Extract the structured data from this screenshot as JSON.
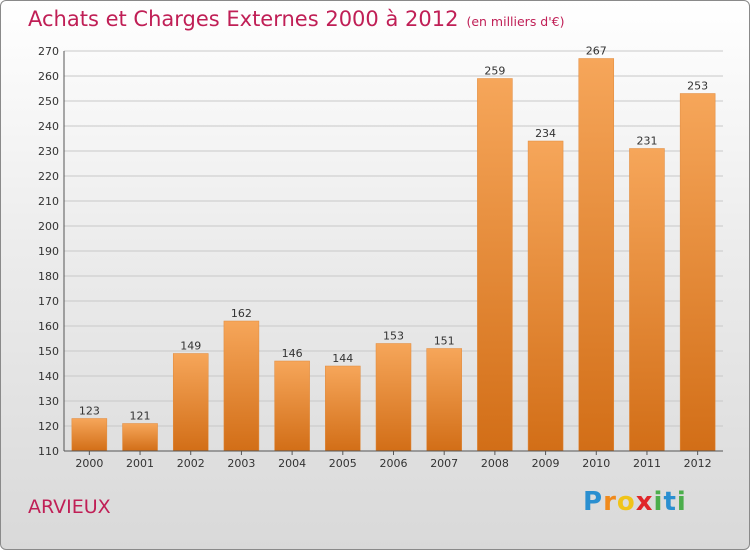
{
  "title": "Achats et Charges Externes 2000 à 2012",
  "unit": "(en milliers d'€)",
  "place": "ARVIEUX",
  "logo": {
    "letters": [
      "P",
      "r",
      "o",
      "x",
      "i",
      "t",
      "i"
    ],
    "colors": [
      "#2a8fd0",
      "#f08a1c",
      "#f0c419",
      "#e0262a",
      "#4cae4c",
      "#2a8fd0",
      "#4cae4c"
    ]
  },
  "colors": {
    "bar_light": "#f6a65a",
    "bar_dark": "#d26e17",
    "title": "#c01f56"
  },
  "chart_data": {
    "type": "bar",
    "title": "Achats et Charges Externes 2000 à 2012",
    "subtitle": "(en milliers d'€)",
    "categories": [
      "2000",
      "2001",
      "2002",
      "2003",
      "2004",
      "2005",
      "2006",
      "2007",
      "2008",
      "2009",
      "2010",
      "2011",
      "2012"
    ],
    "values": [
      123,
      121,
      149,
      162,
      146,
      144,
      153,
      151,
      259,
      234,
      267,
      231,
      253
    ],
    "ylim": [
      110,
      270
    ],
    "yticks": [
      110,
      120,
      130,
      140,
      150,
      160,
      170,
      180,
      190,
      200,
      210,
      220,
      230,
      240,
      250,
      260,
      270
    ],
    "grid": true,
    "xlabel": "",
    "ylabel": ""
  }
}
